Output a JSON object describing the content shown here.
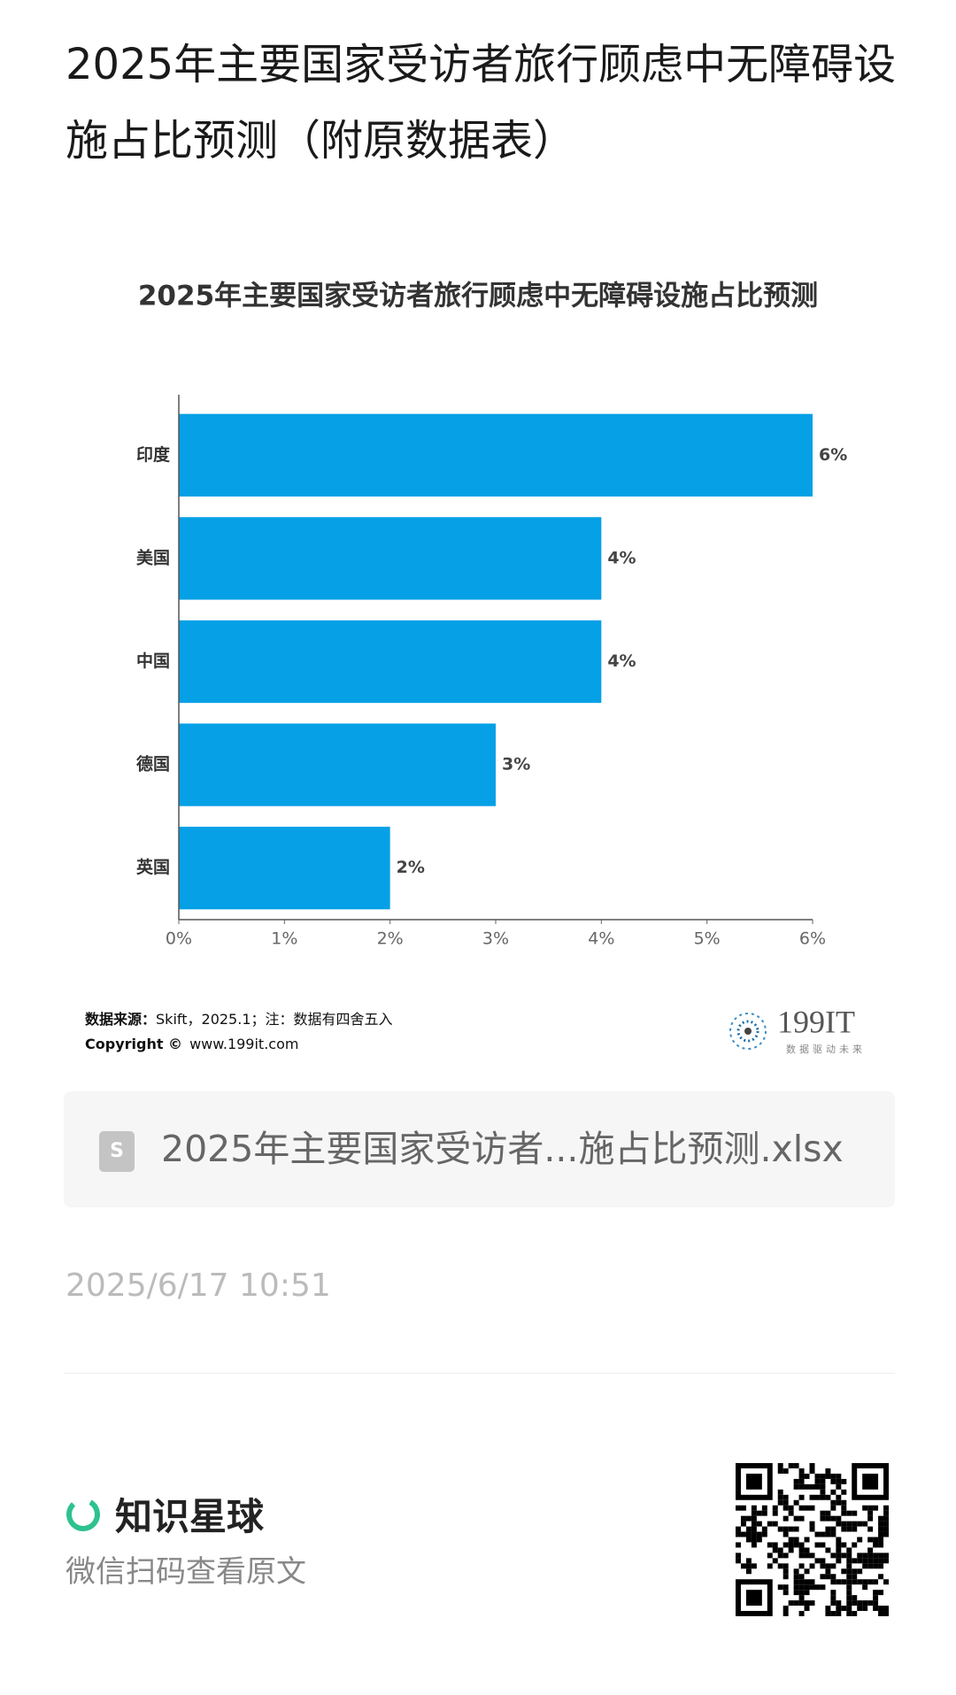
{
  "header": {
    "title": "2025年主要国家受访者旅行顾虑中无障碍设施占比预测（附原数据表）"
  },
  "chart_data": {
    "type": "bar",
    "orientation": "horizontal",
    "title": "2025年主要国家受访者旅行顾虑中无障碍设施占比预测",
    "categories": [
      "印度",
      "美国",
      "中国",
      "德国",
      "英国"
    ],
    "values": [
      6,
      4,
      4,
      3,
      2
    ],
    "value_labels": [
      "6%",
      "4%",
      "4%",
      "3%",
      "2%"
    ],
    "color": "#05a0e6",
    "xlim": [
      0,
      6
    ],
    "xticks": [
      {
        "value": 0,
        "label": "0%"
      },
      {
        "value": 1,
        "label": "1%"
      },
      {
        "value": 2,
        "label": "2%"
      },
      {
        "value": 3,
        "label": "3%"
      },
      {
        "value": 4,
        "label": "4%"
      },
      {
        "value": 5,
        "label": "5%"
      },
      {
        "value": 6,
        "label": "6%"
      }
    ]
  },
  "source": {
    "label": "数据来源：",
    "text": "Skift，2025.1；注：数据有四舍五入",
    "copyright": "Copyright ©",
    "url": "www.199it.com"
  },
  "logo": {
    "text": "199IT",
    "tagline": "数据驱动未来"
  },
  "attachment": {
    "filename": "2025年主要国家受访者...施占比预测.xlsx"
  },
  "timestamp": "2025/6/17 10:51",
  "footer": {
    "brand": "知识星球",
    "caption": "微信扫码查看原文"
  }
}
